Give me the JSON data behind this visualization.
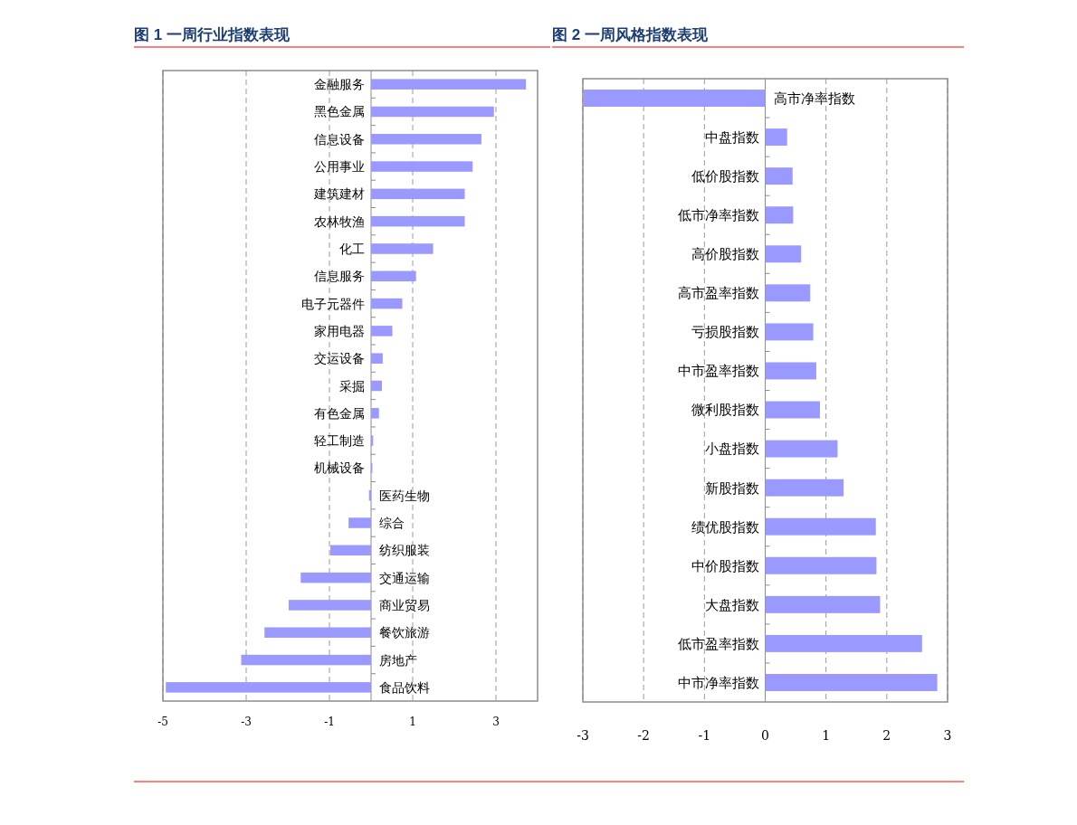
{
  "chart_data": [
    {
      "type": "bar",
      "orientation": "horizontal",
      "title": "图 1 一周行业指数表现",
      "categories": [
        "金融服务",
        "黑色金属",
        "信息设备",
        "公用事业",
        "建筑建材",
        "农林牧渔",
        "化工",
        "信息服务",
        "电子元器件",
        "家用电器",
        "交运设备",
        "采掘",
        "有色金属",
        "轻工制造",
        "机械设备",
        "医药生物",
        "综合",
        "纺织服装",
        "交通运输",
        "商业贸易",
        "餐饮旅游",
        "房地产",
        "食品饮料"
      ],
      "values": [
        3.72,
        2.95,
        2.65,
        2.44,
        2.25,
        2.25,
        1.49,
        1.08,
        0.75,
        0.51,
        0.28,
        0.26,
        0.19,
        0.05,
        0.03,
        -0.05,
        -0.54,
        -0.98,
        -1.69,
        -1.98,
        -2.56,
        -3.12,
        -4.93
      ],
      "color": "#9999ff",
      "xlim": [
        -5,
        4
      ],
      "xticks": [
        -5,
        -3,
        -1,
        1,
        3
      ],
      "grid": "x"
    },
    {
      "type": "bar",
      "orientation": "horizontal",
      "title": "图 2 一周风格指数表现",
      "categories": [
        "高市净率指数",
        "中盘指数",
        "低价股指数",
        "低市净率指数",
        "高价股指数",
        "高市盈率指数",
        "亏损股指数",
        "中市盈率指数",
        "微利股指数",
        "小盘指数",
        "新股指数",
        "绩优股指数",
        "中价股指数",
        "大盘指数",
        "低市盈率指数",
        "中市净率指数"
      ],
      "values": [
        -2.99,
        0.36,
        0.45,
        0.46,
        0.59,
        0.74,
        0.79,
        0.84,
        0.9,
        1.19,
        1.29,
        1.82,
        1.83,
        1.89,
        2.58,
        2.83
      ],
      "color": "#9999ff",
      "xlim": [
        -3,
        3
      ],
      "xticks": [
        -3,
        -2,
        -1,
        0,
        1,
        2,
        3
      ],
      "grid": "x"
    }
  ]
}
